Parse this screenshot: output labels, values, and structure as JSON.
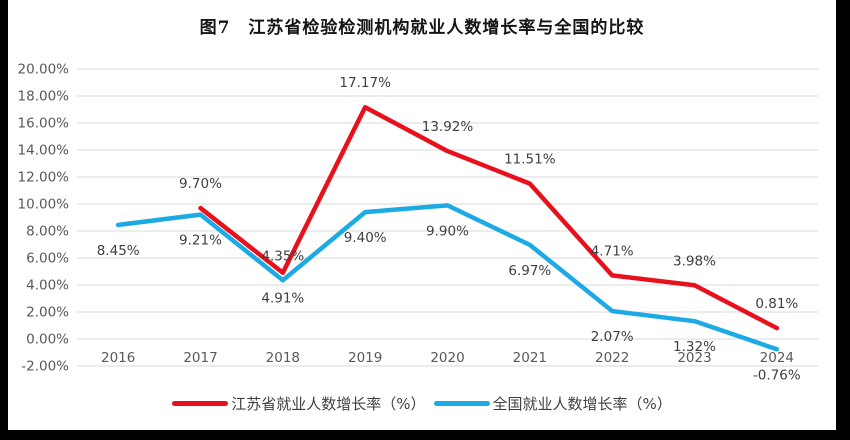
{
  "title": "图7　江苏省检验检测机构就业人数增长率与全国的比较",
  "chart_data": {
    "type": "line",
    "categories": [
      "2016",
      "2017",
      "2018",
      "2019",
      "2020",
      "2021",
      "2022",
      "2023",
      "2024"
    ],
    "series": [
      {
        "name": "江苏省就业人数增长率（%）",
        "color": "#e8101c",
        "values": [
          null,
          9.7,
          4.91,
          17.17,
          13.92,
          11.51,
          4.71,
          3.98,
          0.81
        ],
        "labels": [
          "",
          "9.70%",
          "4.91%",
          "17.17%",
          "13.92%",
          "11.51%",
          "4.71%",
          "3.98%",
          "0.81%"
        ],
        "label_side": [
          "",
          "above",
          "below",
          "above",
          "above",
          "above",
          "above",
          "above",
          "above"
        ]
      },
      {
        "name": "全国就业人数增长率（%）",
        "color": "#1baae4",
        "values": [
          8.45,
          9.21,
          4.35,
          9.4,
          9.9,
          6.97,
          2.07,
          1.32,
          -0.76
        ],
        "labels": [
          "8.45%",
          "9.21%",
          "4.35%",
          "9.40%",
          "9.90%",
          "6.97%",
          "2.07%",
          "1.32%",
          "-0.76%"
        ],
        "label_side": [
          "below",
          "below",
          "above",
          "below",
          "below",
          "below",
          "below",
          "below",
          "below"
        ]
      }
    ],
    "y_ticks": [
      "20.00%",
      "18.00%",
      "16.00%",
      "14.00%",
      "12.00%",
      "10.00%",
      "8.00%",
      "6.00%",
      "4.00%",
      "2.00%",
      "0.00%",
      "-2.00%"
    ],
    "ylim": [
      -2,
      20
    ],
    "grid": true,
    "legend_position": "bottom",
    "grid_color": "#d9d9d9",
    "tick_color": "#595959",
    "data_label_color": "#404040"
  }
}
